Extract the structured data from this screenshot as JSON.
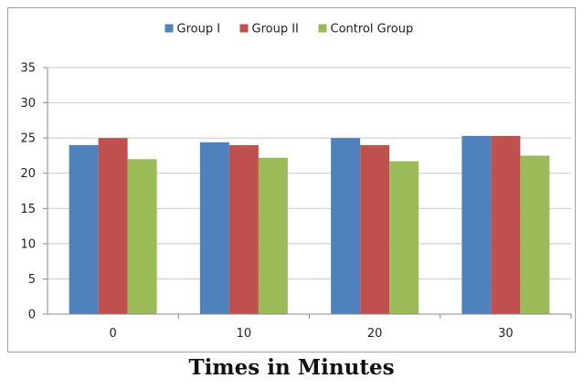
{
  "chart_data": {
    "type": "bar",
    "categories": [
      "0",
      "10",
      "20",
      "30"
    ],
    "series": [
      {
        "name": "Group I",
        "values": [
          24,
          24.4,
          25,
          25.3
        ],
        "color": "#4f81bd"
      },
      {
        "name": "Group II",
        "values": [
          25,
          24,
          24,
          25.3
        ],
        "color": "#c0504d"
      },
      {
        "name": "Control Group",
        "values": [
          22,
          22.2,
          21.7,
          22.5
        ],
        "color": "#9bbb59"
      }
    ],
    "title": "",
    "xlabel": "Times in Minutes",
    "ylabel": "",
    "ylim": [
      0,
      35
    ],
    "yticks": [
      "0",
      "5",
      "10",
      "15",
      "20",
      "25",
      "30",
      "35"
    ],
    "grid": true,
    "legend_position": "top"
  }
}
